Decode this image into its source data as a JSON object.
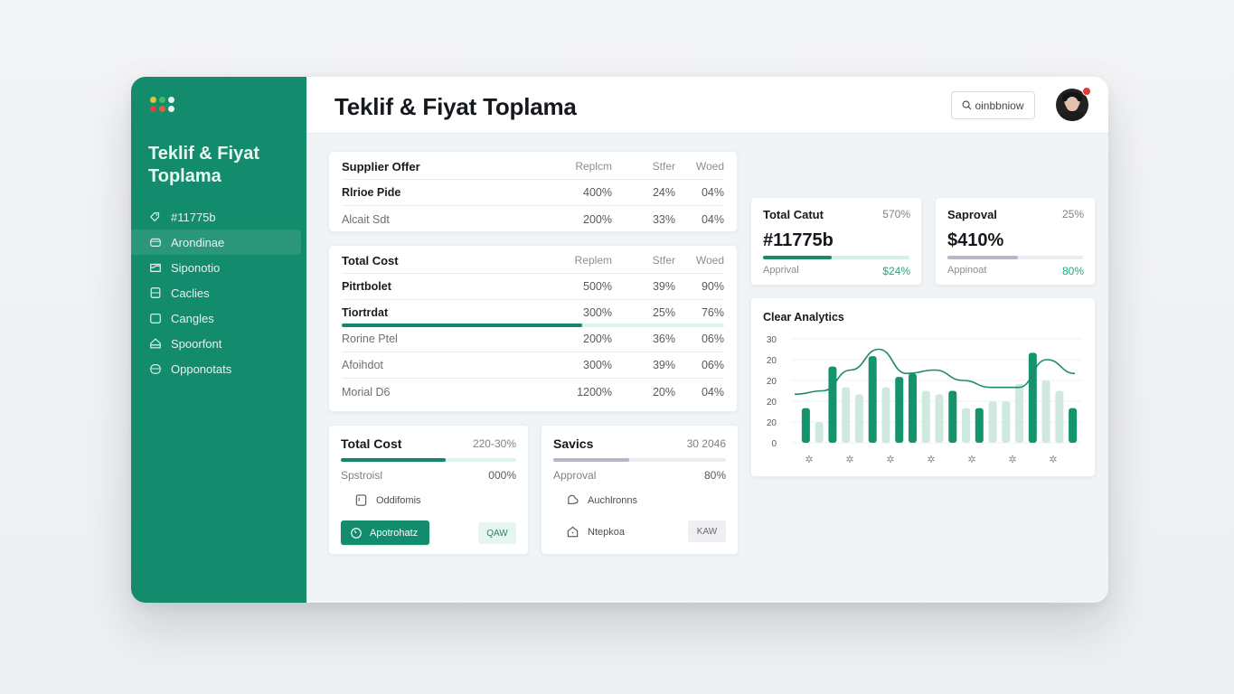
{
  "window": {
    "title": "Teklif & Fiyat Toplama",
    "window_dots": [
      "#e2c336",
      "#3fbf5e",
      "#e8f4ef",
      "#d9453a",
      "#d8633c",
      "#e8f4ef"
    ]
  },
  "sidebar": {
    "brand": "Teklif & Fiyat Toplama",
    "items": [
      {
        "label": "#11775b",
        "icon": "tag-icon",
        "active": false
      },
      {
        "label": "Arondinae",
        "icon": "folder-icon",
        "active": true
      },
      {
        "label": "Siponotio",
        "icon": "inbox-icon",
        "active": false
      },
      {
        "label": "Caclies",
        "icon": "document-icon",
        "active": false
      },
      {
        "label": "Cangles",
        "icon": "box-icon",
        "active": false
      },
      {
        "label": "Spoorfont",
        "icon": "home-icon",
        "active": false
      },
      {
        "label": "Opponotats",
        "icon": "archive-icon",
        "active": false
      }
    ]
  },
  "header": {
    "title": "Teklif & Fiyat Toplama",
    "search_label": "oinbbniow",
    "search_icon": "search-icon",
    "has_notification": true
  },
  "supplier_table": {
    "title": "Supplier Offer",
    "columns": [
      "Replcm",
      "Stfer",
      "Woed"
    ],
    "rows": [
      {
        "name": "Rlrioe Pide",
        "values": [
          "400%",
          "24%",
          "04%"
        ],
        "strong": true
      },
      {
        "name": "Alcait Sdt",
        "values": [
          "200%",
          "33%",
          "04%"
        ],
        "strong": false
      }
    ]
  },
  "cost_table": {
    "title": "Total Cost",
    "columns": [
      "Replem",
      "Stfer",
      "Woed"
    ],
    "rows": [
      {
        "name": "Pitrtbolet",
        "values": [
          "500%",
          "39%",
          "90%"
        ],
        "strong": true,
        "progress": null
      },
      {
        "name": "Tiortrdat",
        "values": [
          "300%",
          "25%",
          "76%"
        ],
        "strong": true,
        "progress": 63
      },
      {
        "name": "Rorine Ptel",
        "values": [
          "200%",
          "36%",
          "06%"
        ],
        "strong": false,
        "progress": null
      },
      {
        "name": "Afoihdot",
        "values": [
          "300%",
          "39%",
          "06%"
        ],
        "strong": false,
        "progress": null
      },
      {
        "name": "Morial D6",
        "values": [
          "1200%",
          "20%",
          "04%"
        ],
        "strong": false,
        "progress": null
      }
    ]
  },
  "total_cost_card": {
    "title": "Total Cost",
    "value": "220-30%",
    "progress": 60,
    "sub_label": "Spstroisl",
    "sub_value": "000%",
    "item_label": "Oddifomis",
    "button_label": "Apotrohatz",
    "chip_label": "QAW",
    "accent": "#128c6c"
  },
  "savings_card": {
    "title": "Savics",
    "value": "30 2046",
    "progress": 44,
    "sub_label": "Approval",
    "sub_value": "80%",
    "items": [
      {
        "label": "Auchlronns",
        "icon": "cloud-icon"
      },
      {
        "label": "Ntepkoa",
        "icon": "home-icon"
      }
    ],
    "chip_label": "KAW"
  },
  "kpi_cards": [
    {
      "title": "Total Catut",
      "pct": "570%",
      "big": "#11775b",
      "progress": 47,
      "sub_label": "Apprival",
      "sub_value": "$24%",
      "fill": "#1b8a68",
      "track": "#d5f1e5"
    },
    {
      "title": "Saproval",
      "pct": "25%",
      "big": "$410%",
      "progress": 52,
      "sub_label": "Appinoat",
      "sub_value": "80%",
      "fill": "#b9b7c8",
      "track": "#ececf1"
    }
  ],
  "chart_data": {
    "type": "bar",
    "title": "Clear Analytics",
    "y_tick_labels": [
      "30",
      "20",
      "20",
      "20",
      "20",
      "0"
    ],
    "ylim": [
      0,
      30
    ],
    "grid": true,
    "x_tick_labels": [
      "✲",
      "✲",
      "✲",
      "✲",
      "✲",
      "✲",
      "✲"
    ],
    "series": [
      {
        "name": "primary",
        "color": "#14936d",
        "values": [
          10,
          22,
          25,
          19,
          20,
          15,
          10,
          26,
          10
        ],
        "positions": [
          0,
          2,
          5,
          7,
          8,
          11,
          13,
          17,
          20
        ]
      },
      {
        "name": "secondary",
        "color": "#cfe9de",
        "values": [
          6,
          16,
          14,
          16,
          15,
          14,
          10,
          12,
          12,
          17,
          18,
          15
        ],
        "positions": [
          1,
          3,
          4,
          6,
          9,
          10,
          12,
          14,
          15,
          16,
          18,
          19
        ]
      },
      {
        "name": "trend",
        "type": "line",
        "color": "#1f8a68",
        "values": [
          14,
          15,
          21,
          27,
          20,
          21,
          18,
          16,
          16,
          24,
          20
        ]
      }
    ]
  }
}
